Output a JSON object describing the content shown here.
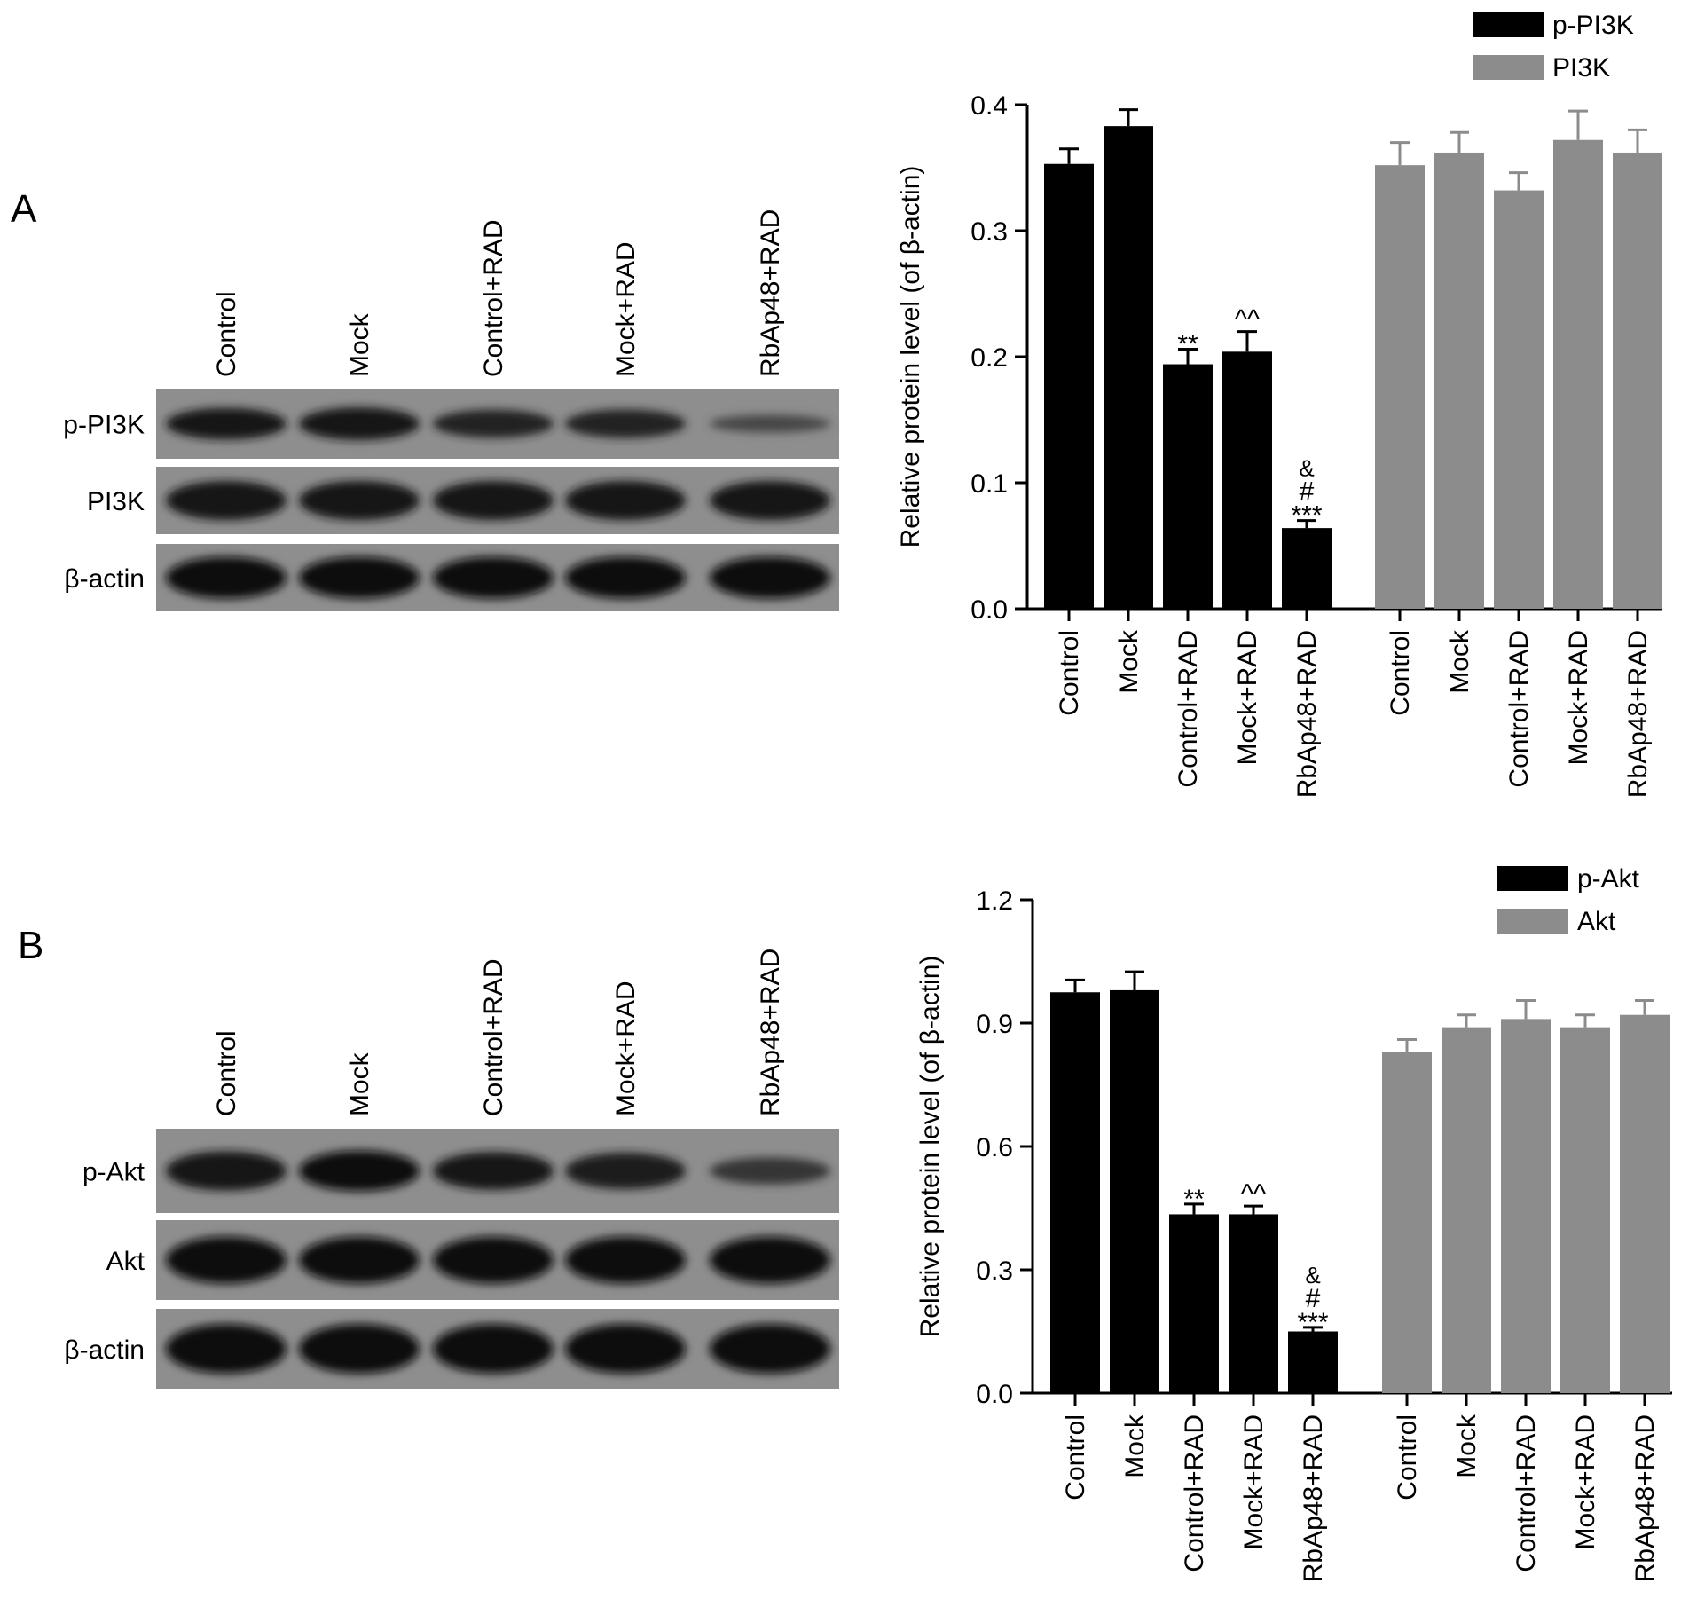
{
  "panels": [
    {
      "letter": "A",
      "blot": {
        "lanes": [
          "Control",
          "Mock",
          "Control+RAD",
          "Mock+RAD",
          "RbAp48+RAD"
        ],
        "rows": [
          "p-PI3K",
          "PI3K",
          "β-actin"
        ],
        "intensity": [
          [
            0.85,
            0.9,
            0.7,
            0.72,
            0.25
          ],
          [
            0.9,
            0.9,
            0.9,
            0.9,
            0.9
          ],
          [
            1.0,
            1.0,
            1.0,
            1.0,
            1.0
          ]
        ]
      }
    },
    {
      "letter": "B",
      "blot": {
        "lanes": [
          "Control",
          "Mock",
          "Control+RAD",
          "Mock+RAD",
          "RbAp48+RAD"
        ],
        "rows": [
          "p-Akt",
          "Akt",
          "β-actin"
        ],
        "intensity": [
          [
            0.9,
            0.95,
            0.85,
            0.8,
            0.45
          ],
          [
            0.92,
            0.92,
            0.92,
            0.92,
            0.92
          ],
          [
            1.0,
            1.0,
            1.0,
            1.0,
            1.0
          ]
        ]
      }
    }
  ],
  "chart_data": [
    {
      "type": "bar",
      "panel": "A",
      "ylabel": "Relative protein level (of β-actin)",
      "ylim": [
        0,
        0.4
      ],
      "yticks": [
        "0.0",
        "0.1",
        "0.2",
        "0.3",
        "0.4"
      ],
      "yticks_values": [
        0,
        0.1,
        0.2,
        0.3,
        0.4
      ],
      "legend_position": "top-right",
      "categories": [
        "Control",
        "Mock",
        "Control+RAD",
        "Mock+RAD",
        "RbAp48+RAD"
      ],
      "series": [
        {
          "name": "p-PI3K",
          "color": "#000000",
          "values": [
            0.353,
            0.383,
            0.194,
            0.204,
            0.064
          ],
          "errors": [
            0.012,
            0.013,
            0.012,
            0.016,
            0.006
          ],
          "annotations": [
            "",
            "",
            "**",
            "^^",
            "***|#|&"
          ]
        },
        {
          "name": "PI3K",
          "color": "#8c8c8c",
          "values": [
            0.352,
            0.362,
            0.332,
            0.372,
            0.362
          ],
          "errors": [
            0.018,
            0.016,
            0.014,
            0.023,
            0.018
          ],
          "annotations": [
            "",
            "",
            "",
            "",
            ""
          ]
        }
      ]
    },
    {
      "type": "bar",
      "panel": "B",
      "ylabel": "Relative protein level (of β-actin)",
      "ylim": [
        0,
        1.2
      ],
      "yticks": [
        "0.0",
        "0.3",
        "0.6",
        "0.9",
        "1.2"
      ],
      "yticks_values": [
        0,
        0.3,
        0.6,
        0.9,
        1.2
      ],
      "legend_position": "top-right",
      "categories": [
        "Control",
        "Mock",
        "Control+RAD",
        "Mock+RAD",
        "RbAp48+RAD"
      ],
      "series": [
        {
          "name": "p-Akt",
          "color": "#000000",
          "values": [
            0.975,
            0.98,
            0.435,
            0.435,
            0.15
          ],
          "errors": [
            0.03,
            0.045,
            0.025,
            0.02,
            0.01
          ],
          "annotations": [
            "",
            "",
            "**",
            "^^",
            "***|#|&"
          ]
        },
        {
          "name": "Akt",
          "color": "#8c8c8c",
          "values": [
            0.83,
            0.89,
            0.91,
            0.89,
            0.92
          ],
          "errors": [
            0.03,
            0.03,
            0.045,
            0.03,
            0.035
          ],
          "annotations": [
            "",
            "",
            "",
            "",
            ""
          ]
        }
      ]
    }
  ]
}
